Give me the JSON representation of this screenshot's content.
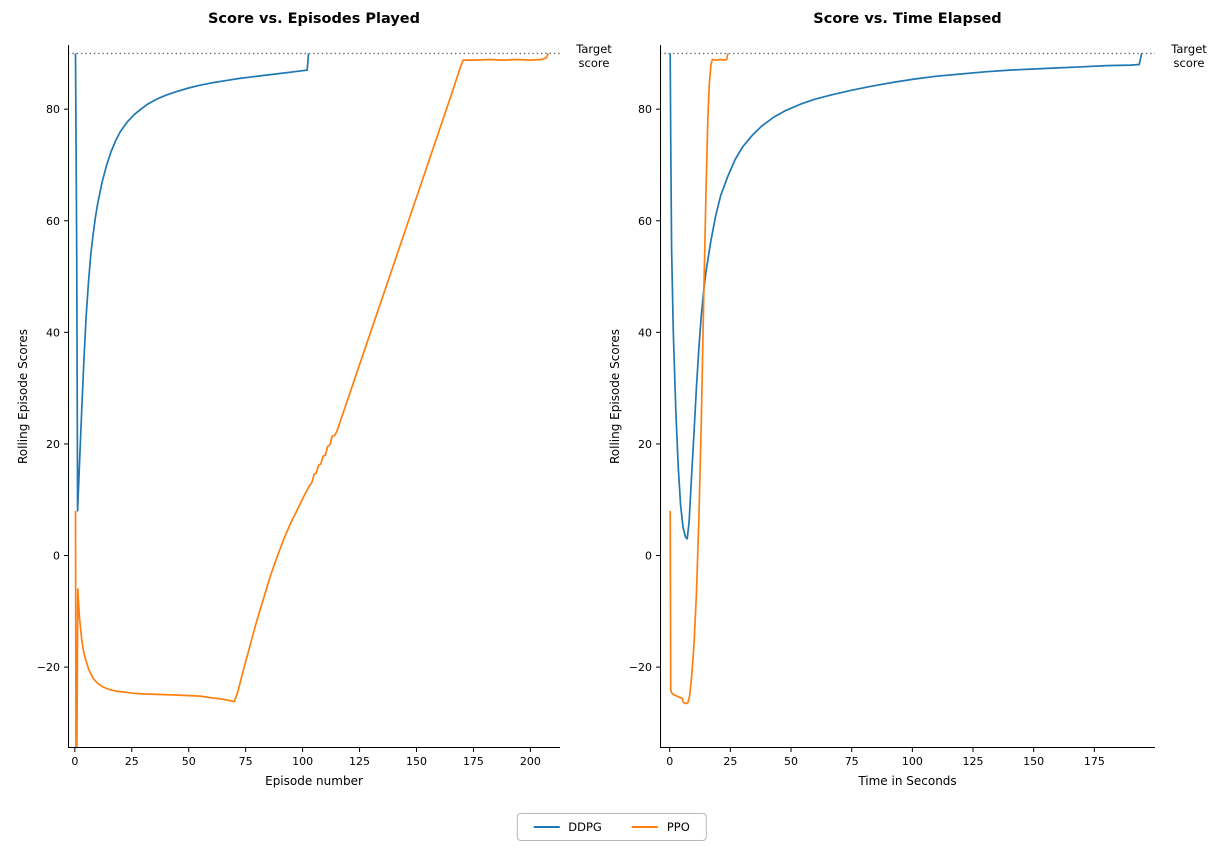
{
  "figure": {
    "background": "#ffffff"
  },
  "colors": {
    "ddpg": "#1f77b4",
    "ppo": "#ff7f0e",
    "target": "#6e6e6e",
    "axis": "#000000"
  },
  "legend": {
    "items": [
      {
        "label": "DDPG",
        "color": "#1f77b4"
      },
      {
        "label": "PPO",
        "color": "#ff7f0e"
      }
    ]
  },
  "chart_data": [
    {
      "type": "line",
      "title": "Score vs. Episodes Played",
      "xlabel": "Episode number",
      "ylabel": "Rolling Episode Scores",
      "xlim": [
        -3,
        213
      ],
      "ylim": [
        -34.5,
        91.5
      ],
      "xticks": [
        0,
        25,
        50,
        75,
        100,
        125,
        150,
        175,
        200
      ],
      "yticks": [
        -20,
        0,
        20,
        40,
        60,
        80
      ],
      "ytick_labels": [
        "−20",
        "0",
        "20",
        "40",
        "60",
        "80"
      ],
      "grid": false,
      "legend_position": "figure-bottom-center",
      "target_line": {
        "y": 90,
        "label": "Target\nscore",
        "style": "dotted",
        "color": "#6e6e6e"
      },
      "series": [
        {
          "name": "DDPG",
          "color": "#1f77b4",
          "points": [
            [
              0.3,
              90
            ],
            [
              0.8,
              55
            ],
            [
              1.2,
              8
            ],
            [
              2,
              16
            ],
            [
              3,
              26
            ],
            [
              4,
              35
            ],
            [
              5,
              43
            ],
            [
              6,
              49
            ],
            [
              7,
              54
            ],
            [
              8,
              57.5
            ],
            [
              9,
              60.5
            ],
            [
              10,
              63
            ],
            [
              12,
              67
            ],
            [
              14,
              70
            ],
            [
              16,
              72.5
            ],
            [
              18,
              74.4
            ],
            [
              20,
              76
            ],
            [
              23,
              77.7
            ],
            [
              26,
              79
            ],
            [
              29,
              80
            ],
            [
              32,
              80.9
            ],
            [
              36,
              81.8
            ],
            [
              40,
              82.5
            ],
            [
              45,
              83.2
            ],
            [
              50,
              83.8
            ],
            [
              55,
              84.3
            ],
            [
              60,
              84.7
            ],
            [
              66,
              85.1
            ],
            [
              72,
              85.5
            ],
            [
              78,
              85.8
            ],
            [
              84,
              86.1
            ],
            [
              90,
              86.4
            ],
            [
              96,
              86.7
            ],
            [
              100,
              86.9
            ],
            [
              102,
              87
            ],
            [
              102.6,
              90
            ]
          ]
        },
        {
          "name": "PPO",
          "color": "#ff7f0e",
          "points": [
            [
              0.3,
              8
            ],
            [
              0.5,
              -34.5
            ],
            [
              0.9,
              -34.5
            ],
            [
              1.3,
              -6
            ],
            [
              2,
              -11
            ],
            [
              3,
              -15
            ],
            [
              4,
              -17.5
            ],
            [
              5,
              -19
            ],
            [
              6,
              -20.3
            ],
            [
              7,
              -21.2
            ],
            [
              8,
              -22
            ],
            [
              10,
              -22.9
            ],
            [
              12,
              -23.5
            ],
            [
              15,
              -24
            ],
            [
              18,
              -24.3
            ],
            [
              22,
              -24.5
            ],
            [
              26,
              -24.7
            ],
            [
              30,
              -24.8
            ],
            [
              36,
              -24.9
            ],
            [
              44,
              -25
            ],
            [
              50,
              -25.1
            ],
            [
              55,
              -25.2
            ],
            [
              60,
              -25.5
            ],
            [
              64,
              -25.7
            ],
            [
              68,
              -26
            ],
            [
              70,
              -26.2
            ],
            [
              71.5,
              -24.5
            ],
            [
              74,
              -20.5
            ],
            [
              77,
              -16
            ],
            [
              80,
              -11.5
            ],
            [
              83,
              -7.5
            ],
            [
              86,
              -3.5
            ],
            [
              89,
              0
            ],
            [
              92,
              3.2
            ],
            [
              95,
              6
            ],
            [
              98,
              8.5
            ],
            [
              101,
              11
            ],
            [
              103,
              12.5
            ],
            [
              104,
              13
            ],
            [
              105,
              14.5
            ],
            [
              106,
              14.8
            ],
            [
              107,
              16.2
            ],
            [
              108,
              16.4
            ],
            [
              109,
              17.8
            ],
            [
              110,
              18
            ],
            [
              111,
              19.6
            ],
            [
              112,
              19.8
            ],
            [
              113,
              21.4
            ],
            [
              114,
              21.5
            ],
            [
              115,
              22.2
            ],
            [
              118,
              25.8
            ],
            [
              122,
              30.6
            ],
            [
              127,
              36.6
            ],
            [
              132,
              42.6
            ],
            [
              137,
              48.6
            ],
            [
              142,
              54.6
            ],
            [
              147,
              60.6
            ],
            [
              152,
              66.6
            ],
            [
              157,
              72.6
            ],
            [
              162,
              78.6
            ],
            [
              166,
              83.4
            ],
            [
              169,
              87.2
            ],
            [
              170.5,
              88.8
            ],
            [
              176,
              88.8
            ],
            [
              182,
              88.9
            ],
            [
              188,
              88.8
            ],
            [
              194,
              88.9
            ],
            [
              200,
              88.8
            ],
            [
              205,
              88.9
            ],
            [
              207,
              89.2
            ],
            [
              207.8,
              90
            ]
          ]
        }
      ]
    },
    {
      "type": "line",
      "title": "Score vs. Time Elapsed",
      "xlabel": "Time in Seconds",
      "ylabel": "Rolling Episode Scores",
      "xlim": [
        -4,
        200
      ],
      "ylim": [
        -34.5,
        91.5
      ],
      "xticks": [
        0,
        25,
        50,
        75,
        100,
        125,
        150,
        175
      ],
      "yticks": [
        -20,
        0,
        20,
        40,
        60,
        80
      ],
      "ytick_labels": [
        "−20",
        "0",
        "20",
        "40",
        "60",
        "80"
      ],
      "grid": false,
      "legend_position": "figure-bottom-center",
      "target_line": {
        "y": 90,
        "label": "Target\nscore",
        "style": "dotted",
        "color": "#6e6e6e"
      },
      "series": [
        {
          "name": "DDPG",
          "color": "#1f77b4",
          "points": [
            [
              0.2,
              90
            ],
            [
              0.4,
              75
            ],
            [
              0.8,
              55
            ],
            [
              1.5,
              40
            ],
            [
              2.5,
              26
            ],
            [
              3.5,
              16
            ],
            [
              4.5,
              9
            ],
            [
              5.5,
              5
            ],
            [
              6.5,
              3.3
            ],
            [
              7.2,
              3
            ],
            [
              8,
              6
            ],
            [
              9,
              14
            ],
            [
              10,
              22
            ],
            [
              11,
              30
            ],
            [
              12,
              37
            ],
            [
              13,
              43
            ],
            [
              14,
              47.5
            ],
            [
              15,
              51
            ],
            [
              17,
              56.5
            ],
            [
              19,
              61
            ],
            [
              21,
              64.5
            ],
            [
              24,
              68
            ],
            [
              27,
              71
            ],
            [
              30,
              73.2
            ],
            [
              34,
              75.3
            ],
            [
              38,
              77
            ],
            [
              43,
              78.6
            ],
            [
              48,
              79.8
            ],
            [
              54,
              80.9
            ],
            [
              60,
              81.8
            ],
            [
              67,
              82.6
            ],
            [
              75,
              83.4
            ],
            [
              83,
              84.1
            ],
            [
              92,
              84.8
            ],
            [
              101,
              85.4
            ],
            [
              110,
              85.9
            ],
            [
              120,
              86.3
            ],
            [
              130,
              86.7
            ],
            [
              140,
              87
            ],
            [
              150,
              87.2
            ],
            [
              160,
              87.4
            ],
            [
              170,
              87.6
            ],
            [
              180,
              87.8
            ],
            [
              190,
              87.9
            ],
            [
              193.5,
              88
            ],
            [
              194.5,
              90
            ]
          ]
        },
        {
          "name": "PPO",
          "color": "#ff7f0e",
          "points": [
            [
              0.2,
              8
            ],
            [
              0.4,
              -24
            ],
            [
              0.8,
              -24.6
            ],
            [
              1.5,
              -24.9
            ],
            [
              2.5,
              -25.1
            ],
            [
              3.5,
              -25.3
            ],
            [
              4.5,
              -25.5
            ],
            [
              5.2,
              -25.6
            ],
            [
              5.6,
              -26.3
            ],
            [
              6.2,
              -26.5
            ],
            [
              7,
              -26.5
            ],
            [
              7.6,
              -26.3
            ],
            [
              8.2,
              -25.2
            ],
            [
              9,
              -22
            ],
            [
              10,
              -16
            ],
            [
              11,
              -7
            ],
            [
              12,
              6
            ],
            [
              13,
              24
            ],
            [
              14,
              46
            ],
            [
              15,
              66
            ],
            [
              15.7,
              78
            ],
            [
              16.3,
              84.5
            ],
            [
              17,
              88
            ],
            [
              17.6,
              88.9
            ],
            [
              19,
              88.8
            ],
            [
              21,
              88.9
            ],
            [
              22.5,
              88.8
            ],
            [
              23.5,
              88.9
            ],
            [
              24,
              90
            ]
          ]
        }
      ]
    }
  ]
}
